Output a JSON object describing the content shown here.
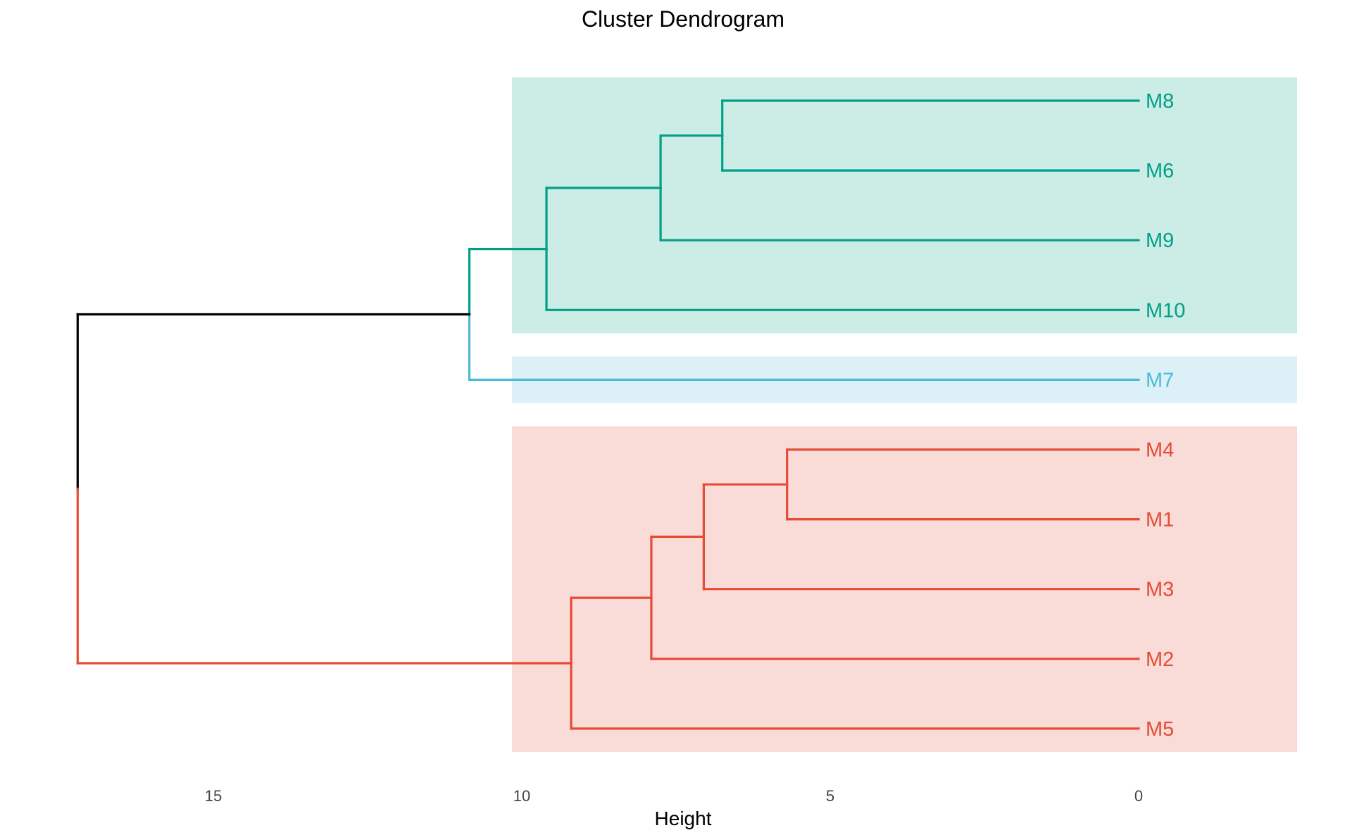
{
  "chart_data": {
    "type": "dendrogram",
    "orientation": "horizontal",
    "title": "Cluster Dendrogram",
    "xlabel": "Height",
    "x_ticks": [
      15,
      10,
      5,
      0
    ],
    "xlim": [
      -2.6,
      17.3
    ],
    "leaf_order": [
      "M8",
      "M6",
      "M9",
      "M10",
      "M7",
      "M4",
      "M1",
      "M3",
      "M2",
      "M5"
    ],
    "merges": [
      {
        "id": "n1",
        "left": "M8",
        "right": "M6",
        "height": 6.75
      },
      {
        "id": "n2",
        "left": "n1",
        "right": "M9",
        "height": 7.75
      },
      {
        "id": "n3",
        "left": "n2",
        "right": "M10",
        "height": 9.6
      },
      {
        "id": "n4",
        "left": "n3",
        "right": "M7",
        "height": 10.85
      },
      {
        "id": "n5",
        "left": "M4",
        "right": "M1",
        "height": 5.7
      },
      {
        "id": "n6",
        "left": "n5",
        "right": "M3",
        "height": 7.05
      },
      {
        "id": "n7",
        "left": "n6",
        "right": "M2",
        "height": 7.9
      },
      {
        "id": "n8",
        "left": "n7",
        "right": "M5",
        "height": 9.2
      },
      {
        "id": "root",
        "left": "n4",
        "right": "n8",
        "height": 17.2
      }
    ],
    "clusters": [
      {
        "leaves": [
          "M8",
          "M6",
          "M9",
          "M10"
        ],
        "color": "#00A087",
        "fill": "#CCECE6"
      },
      {
        "leaves": [
          "M7"
        ],
        "color": "#4DBBD5",
        "fill": "#DBF0F7"
      },
      {
        "leaves": [
          "M4",
          "M1",
          "M3",
          "M2",
          "M5"
        ],
        "color": "#E64B35",
        "fill": "#F9DBD8"
      }
    ],
    "root_color": "#000000"
  }
}
